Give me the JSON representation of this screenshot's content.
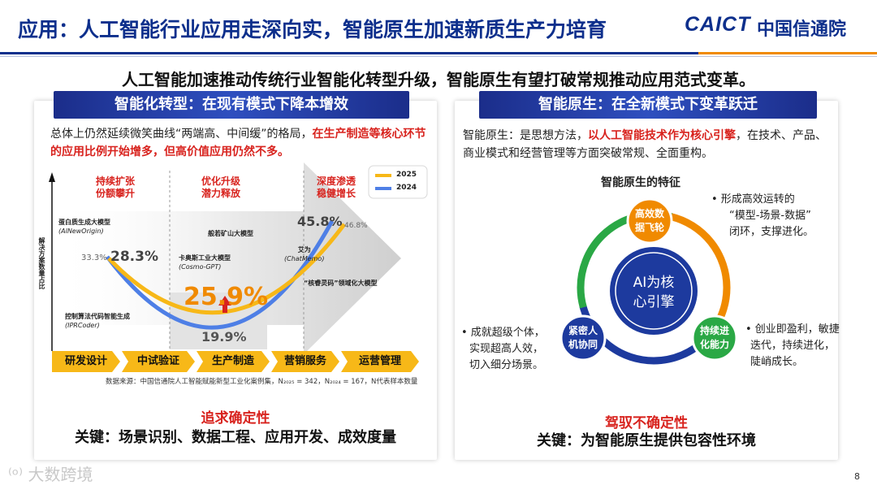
{
  "header": {
    "title": "应用：人工智能行业应用走深向实，智能原生加速新质生产力培育",
    "logo_caict": "CAICT",
    "logo_name": "中国信通院"
  },
  "subheading": "人工智能加速推动传统行业智能化转型升级，智能原生有望打破常规推动应用范式变革。",
  "left": {
    "banner": "智能化转型：在现有模式下降本增效",
    "para_normal": "总体上仍然延续微笑曲线“两端高、中间缓”的格局，",
    "para_highlight": "在生产制造等核心环节的应用比例开始增多，但高价值应用仍然不多。",
    "chart": {
      "y_axis_label": "解决方案数量占比",
      "phase_labels": [
        {
          "line1": "持续扩张",
          "line2": "份额攀升"
        },
        {
          "line1": "优化升级",
          "line2": "潜力释放"
        },
        {
          "line1": "深度渗透",
          "line2": "稳健增长"
        }
      ],
      "legend": [
        {
          "label": "2025",
          "color": "#f7b818"
        },
        {
          "label": "2024",
          "color": "#4e7fe6"
        }
      ],
      "value_labels": {
        "left_2024": "33.3%",
        "left_2025": "28.3%",
        "mid_2025": "25.9%",
        "mid_2024": "19.9%",
        "right_2025": "45.8%",
        "right_2024": "46.8%"
      },
      "models": [
        {
          "name": "蛋白质生成大模型",
          "sub": "(AlNewOrigin)"
        },
        {
          "name": "卡奥斯工业大模型",
          "sub": "(Cosmo-GPT)"
        },
        {
          "name": "艾为",
          "sub": "(ChatMemo)"
        },
        {
          "name": "般若矿山大模型",
          "sub": ""
        },
        {
          "name": "“核睿灵码”领域化大模型",
          "sub": ""
        },
        {
          "name": "控制算法代码智能生成",
          "sub": "(IPRCoder)"
        }
      ]
    },
    "stages": [
      "研发设计",
      "中试验证",
      "生产制造",
      "营销服务",
      "运营管理"
    ],
    "source": "数据来源：中国信通院人工智能赋能新型工业化案例集，N₂₀₂₅ = 342，N₂₀₂₄ = 167，N代表样本数量",
    "pursue": "追求确定性",
    "key": "关键：场景识别、数据工程、应用开发、成效度量"
  },
  "right": {
    "banner": "智能原生：在全新模式下变革跃迁",
    "para_normal_1": "智能原生：是思想方法，",
    "para_highlight": "以人工智能技术作为核心引擎",
    "para_normal_2": "，在技术、产品、商业模式和经营管理等方面突破常规、全面重构。",
    "features_title": "智能原生的特征",
    "center": {
      "line1": "AI为核",
      "line2": "心引擎"
    },
    "nodes": [
      {
        "line1": "高效数",
        "line2": "据飞轮",
        "color": "#f08a00"
      },
      {
        "line1": "紧密人",
        "line2": "机协同",
        "color": "#1d3a9e"
      },
      {
        "line1": "持续进",
        "line2": "化能力",
        "color": "#2aa845"
      }
    ],
    "notes": {
      "top": [
        "• 形成高效运转的",
        "“模型-场景-数据”",
        "闭环，支撑进化。"
      ],
      "left": [
        "• 成就超级个体，",
        "实现超高人效，",
        "切入细分场景。"
      ],
      "right": [
        "• 创业即盈利，敏捷",
        "迭代，持续进化，",
        "陡峭成长。"
      ]
    },
    "pursue": "驾驭不确定性",
    "key": "关键：为智能原生提供包容性环境"
  },
  "footer": {
    "watermark": "大数跨境",
    "page_number": "8"
  },
  "colors": {
    "brand_blue": "#0d2f8c",
    "accent_orange": "#f08a00",
    "highlight_red": "#d8231e",
    "stage_yellow": "#f7b818"
  }
}
